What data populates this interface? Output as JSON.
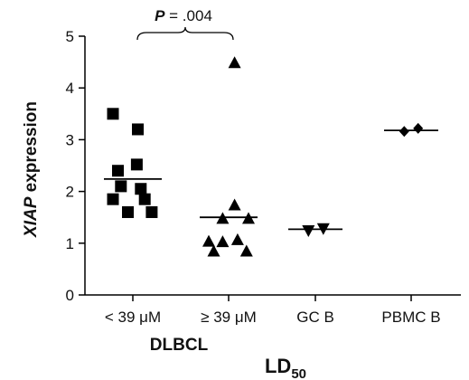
{
  "chart_data": {
    "type": "scatter",
    "ylabel_italic": "XIAP",
    "ylabel_rest": " expression",
    "xlabel_main": "LD",
    "xlabel_sub": "50",
    "group_label": "DLBCL",
    "ylim": [
      0,
      5
    ],
    "yticks": [
      "0",
      "1",
      "2",
      "3",
      "4",
      "5"
    ],
    "categories": [
      "< 39 μM",
      "≥ 39 μM",
      "GC B",
      "PBMC B"
    ],
    "series": [
      {
        "category": "< 39 μM",
        "marker": "square",
        "mean": 2.24,
        "points": [
          {
            "x": -0.2,
            "y": 3.5
          },
          {
            "x": 0.05,
            "y": 3.2
          },
          {
            "x": -0.15,
            "y": 2.4
          },
          {
            "x": 0.04,
            "y": 2.52
          },
          {
            "x": -0.12,
            "y": 2.1
          },
          {
            "x": 0.08,
            "y": 2.05
          },
          {
            "x": -0.2,
            "y": 1.85
          },
          {
            "x": 0.12,
            "y": 1.85
          },
          {
            "x": -0.05,
            "y": 1.6
          },
          {
            "x": 0.19,
            "y": 1.6
          }
        ]
      },
      {
        "category": "≥ 39 μM",
        "marker": "triangle-up",
        "mean": 1.5,
        "points": [
          {
            "x": 0.06,
            "y": 4.48
          },
          {
            "x": 0.06,
            "y": 1.73
          },
          {
            "x": -0.06,
            "y": 1.47
          },
          {
            "x": 0.2,
            "y": 1.47
          },
          {
            "x": -0.2,
            "y": 1.03
          },
          {
            "x": -0.06,
            "y": 1.02
          },
          {
            "x": 0.09,
            "y": 1.06
          },
          {
            "x": -0.15,
            "y": 0.84
          },
          {
            "x": 0.18,
            "y": 0.84
          }
        ]
      },
      {
        "category": "GC B",
        "marker": "triangle-down",
        "mean": 1.27,
        "points": [
          {
            "x": -0.07,
            "y": 1.25
          },
          {
            "x": 0.08,
            "y": 1.29
          }
        ]
      },
      {
        "category": "PBMC B",
        "marker": "diamond",
        "mean": 3.18,
        "points": [
          {
            "x": -0.07,
            "y": 3.16
          },
          {
            "x": 0.07,
            "y": 3.22
          }
        ]
      }
    ],
    "annotation": {
      "p_letter": "P",
      "p_rest": " = .004",
      "between": [
        "< 39 μM",
        "≥ 39 μM"
      ]
    },
    "grid": false,
    "legend": "none"
  }
}
